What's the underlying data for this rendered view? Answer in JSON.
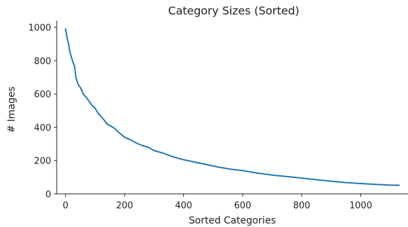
{
  "chart_data": {
    "type": "line",
    "title": "Category Sizes (Sorted)",
    "xlabel": "Sorted Categories",
    "ylabel": "# Images",
    "xlim": [
      -30,
      1160
    ],
    "ylim": [
      0,
      1040
    ],
    "xticks": [
      0,
      200,
      400,
      600,
      800,
      1000
    ],
    "yticks": [
      0,
      200,
      400,
      600,
      800,
      1000
    ],
    "xtick_labels": [
      "0",
      "200",
      "400",
      "600",
      "800",
      "1000"
    ],
    "ytick_labels": [
      "0",
      "200",
      "400",
      "600",
      "800",
      "1000"
    ],
    "grid": false,
    "legend": false,
    "line_color": "#1f77b4",
    "series": [
      {
        "x": [
          0,
          5,
          10,
          15,
          20,
          25,
          30,
          35,
          40,
          45,
          50,
          60,
          70,
          80,
          90,
          100,
          110,
          120,
          130,
          140,
          150,
          165,
          180,
          200,
          220,
          240,
          260,
          280,
          300,
          330,
          360,
          400,
          440,
          480,
          520,
          560,
          600,
          650,
          700,
          750,
          800,
          850,
          900,
          950,
          1000,
          1050,
          1100,
          1130
        ],
        "y": [
          990,
          940,
          900,
          850,
          820,
          790,
          770,
          700,
          670,
          650,
          640,
          600,
          580,
          555,
          530,
          515,
          485,
          465,
          445,
          420,
          410,
          395,
          370,
          340,
          325,
          305,
          290,
          280,
          260,
          245,
          225,
          205,
          190,
          175,
          160,
          148,
          140,
          125,
          113,
          104,
          95,
          85,
          76,
          68,
          62,
          57,
          53,
          52
        ]
      }
    ]
  }
}
